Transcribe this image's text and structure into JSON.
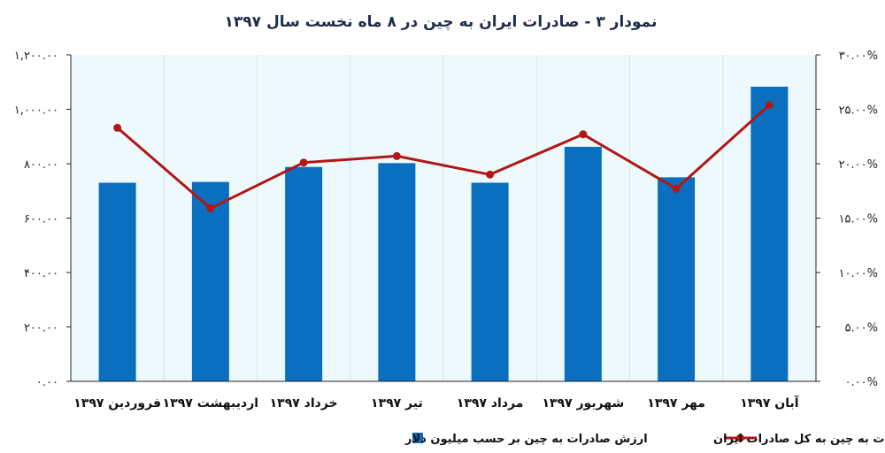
{
  "chart_data": {
    "type": "bar+line",
    "title": "نمودار ۳ - صادرات ایران به چین در ۸ ماه نخست سال ۱۳۹۷",
    "categories": [
      "فروردین ۱۳۹۷",
      "اردیبهشت ۱۳۹۷",
      "خرداد ۱۳۹۷",
      "تیر ۱۳۹۷",
      "مرداد ۱۳۹۷",
      "شهریور ۱۳۹۷",
      "مهر ۱۳۹۷",
      "آبان ۱۳۹۷"
    ],
    "series": [
      {
        "name": "ارزش صادرات به چین بر حسب میلیون دلار",
        "type": "bar",
        "axis": "left",
        "color": "#0a6fbf",
        "values": [
          730,
          733,
          788,
          802,
          730,
          862,
          750,
          1083
        ]
      },
      {
        "name": "نسبت صادرات به چین به کل صادرات ایران",
        "type": "line",
        "axis": "right",
        "color": "#b01818",
        "values": [
          23.3,
          15.9,
          20.1,
          20.7,
          19.0,
          22.7,
          17.7,
          25.4
        ]
      }
    ],
    "y_left": {
      "range": [
        0,
        1200
      ],
      "ticks": [
        0,
        200,
        400,
        600,
        800,
        1000,
        1200
      ],
      "tick_labels": [
        "۰.۰۰",
        "۲۰۰.۰۰",
        "۴۰۰.۰۰",
        "۶۰۰.۰۰",
        "۸۰۰.۰۰",
        "۱,۰۰۰.۰۰",
        "۱,۲۰۰.۰۰"
      ]
    },
    "y_right": {
      "range": [
        0,
        30
      ],
      "ticks": [
        0,
        5,
        10,
        15,
        20,
        25,
        30
      ],
      "tick_labels": [
        "۰.۰۰%",
        "۵.۰۰%",
        "۱۰.۰۰%",
        "۱۵.۰۰%",
        "۲۰.۰۰%",
        "۲۵.۰۰%",
        "۳۰.۰۰%"
      ]
    },
    "grid": "vertical",
    "plot_background": "#eef9fd",
    "legend_position": "bottom"
  }
}
